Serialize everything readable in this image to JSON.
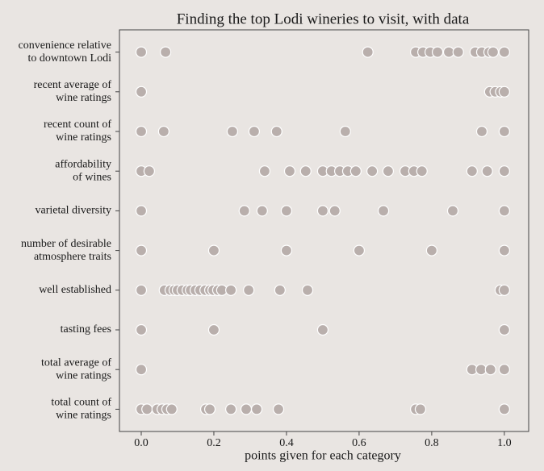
{
  "chart_data": {
    "type": "strip",
    "title": "Finding the top Lodi wineries to visit, with data",
    "xlabel": "points given for each category",
    "color": "#b9afac",
    "categories": [
      [
        "convenience relative",
        "to downtown Lodi"
      ],
      [
        "recent average of",
        "wine ratings"
      ],
      [
        "recent count of",
        "wine ratings"
      ],
      [
        "affordability",
        "of wines"
      ],
      [
        "varietal diversity"
      ],
      [
        "number of desirable",
        "atmosphere traits"
      ],
      [
        "well established"
      ],
      [
        "tasting fees"
      ],
      [
        "total average of",
        "wine ratings"
      ],
      [
        "total count of",
        "wine ratings"
      ]
    ],
    "values": [
      [
        0,
        0.067,
        0.624,
        0.756,
        0.776,
        0.796,
        0.816,
        0.847,
        0.873,
        0.92,
        0.938,
        0.958,
        0.969,
        1.0
      ],
      [
        0,
        0.96,
        0.975,
        0.99,
        1.0
      ],
      [
        0,
        0.062,
        0.251,
        0.311,
        0.373,
        0.562,
        0.938,
        1.0
      ],
      [
        0,
        0.022,
        0.34,
        0.409,
        0.453,
        0.5,
        0.524,
        0.547,
        0.569,
        0.591,
        0.636,
        0.68,
        0.727,
        0.751,
        0.773,
        0.911,
        0.953,
        1.0
      ],
      [
        0,
        0.284,
        0.333,
        0.4,
        0.5,
        0.533,
        0.667,
        0.858,
        1.0
      ],
      [
        0,
        0.2,
        0.4,
        0.6,
        0.8,
        1.0
      ],
      [
        0,
        0.064,
        0.08,
        0.091,
        0.1,
        0.113,
        0.127,
        0.136,
        0.149,
        0.162,
        0.176,
        0.189,
        0.198,
        0.211,
        0.222,
        0.247,
        0.296,
        0.382,
        0.458,
        0.989,
        1.0
      ],
      [
        0,
        0.2,
        0.5,
        1.0
      ],
      [
        0,
        0.911,
        0.936,
        0.962,
        1.0
      ],
      [
        0,
        0.016,
        0.044,
        0.058,
        0.071,
        0.084,
        0.178,
        0.189,
        0.247,
        0.289,
        0.318,
        0.378,
        0.756,
        0.769,
        1.0
      ]
    ],
    "xlim": [
      -0.06,
      1.067
    ],
    "xticks": [
      {
        "value": 0,
        "label": "0.0"
      },
      0.2,
      0.4,
      0.6,
      0.8,
      {
        "value": 1,
        "label": "1.0"
      }
    ]
  }
}
